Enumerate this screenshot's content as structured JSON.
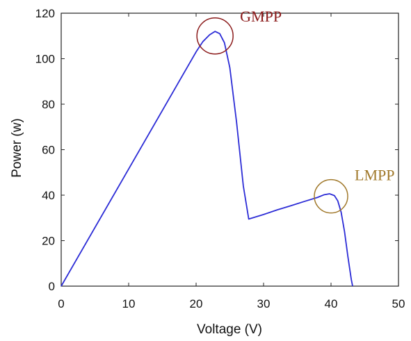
{
  "chart_data": {
    "type": "line",
    "title": "",
    "xlabel": "Voltage (V)",
    "ylabel": "Power (w)",
    "xlim": [
      0,
      50
    ],
    "ylim": [
      0,
      120
    ],
    "x_ticks": [
      "0",
      "10",
      "20",
      "30",
      "40",
      "50"
    ],
    "y_ticks": [
      "0",
      "20",
      "40",
      "60",
      "80",
      "100",
      "120"
    ],
    "grid": false,
    "legend": "none",
    "series": [
      {
        "color": "#2b2bd6",
        "x": [
          0,
          20,
          21,
          22,
          22.8,
          23.5,
          24.2,
          25,
          26,
          27,
          27.8,
          30,
          32,
          34,
          36,
          38,
          39,
          39.8,
          40.5,
          41,
          41.5,
          42,
          42.5,
          43,
          43.2
        ],
        "y": [
          0,
          103,
          107.5,
          110.5,
          112,
          111,
          107,
          96,
          72,
          44,
          29.5,
          31.5,
          33.5,
          35.3,
          37.2,
          39,
          40.2,
          40.6,
          39.8,
          37.5,
          32.5,
          24,
          13,
          3,
          0
        ]
      }
    ],
    "annotations": [
      {
        "text": "GMPP",
        "x": 22.8,
        "y": 110,
        "color": "#8b1a1a"
      },
      {
        "text": "LMPP",
        "x": 40,
        "y": 39.5,
        "color": "#a0782a"
      }
    ]
  }
}
